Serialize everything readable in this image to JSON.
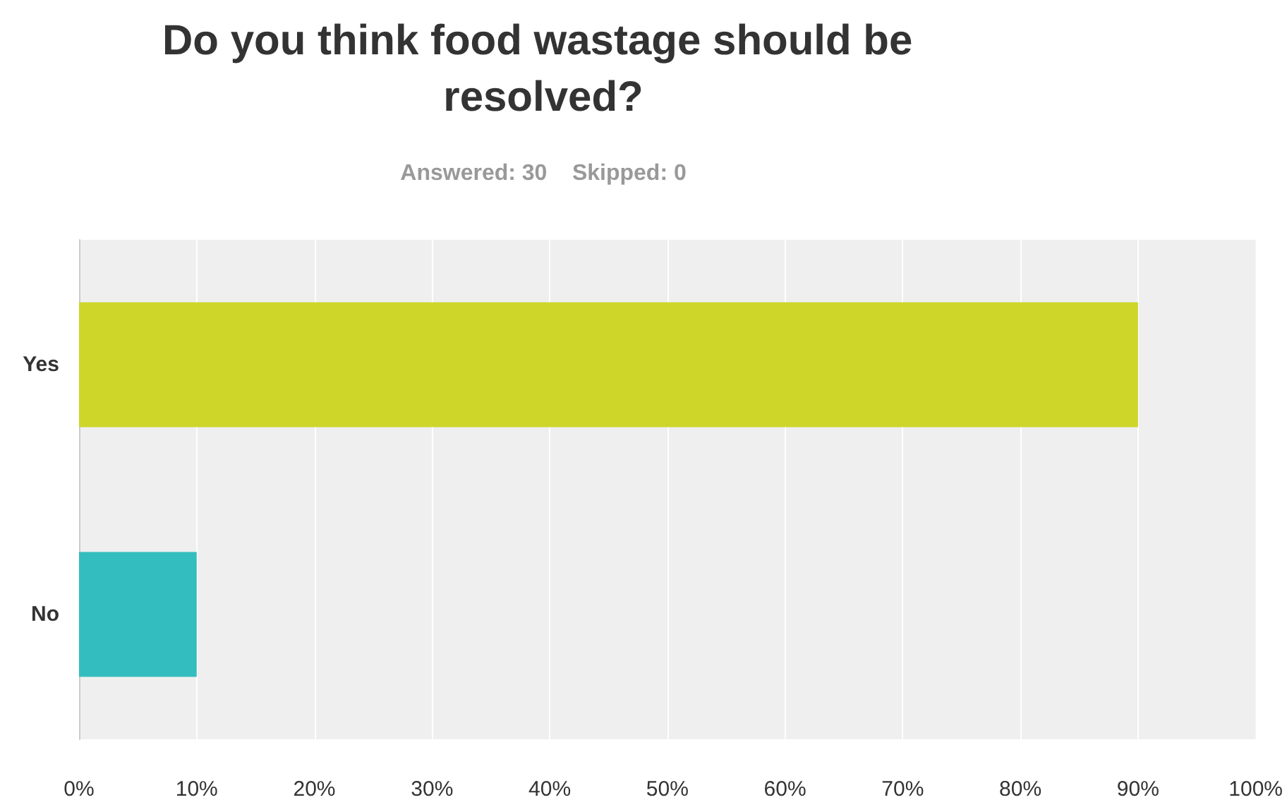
{
  "chart_data": {
    "type": "bar",
    "orientation": "horizontal",
    "title": "Do you think food wastage should be resolved?",
    "subtitle": "Answered: 30    Skipped: 0",
    "categories": [
      "Yes",
      "No"
    ],
    "values": [
      90,
      10
    ],
    "colors": [
      "#cdd629",
      "#33bdbe"
    ],
    "xlim": [
      0,
      100
    ],
    "xticks": [
      {
        "value": 0,
        "label": "0%"
      },
      {
        "value": 10,
        "label": "10%"
      },
      {
        "value": 20,
        "label": "20%"
      },
      {
        "value": 30,
        "label": "30%"
      },
      {
        "value": 40,
        "label": "40%"
      },
      {
        "value": 50,
        "label": "50%"
      },
      {
        "value": 60,
        "label": "60%"
      },
      {
        "value": 70,
        "label": "70%"
      },
      {
        "value": 80,
        "label": "80%"
      },
      {
        "value": 90,
        "label": "90%"
      },
      {
        "value": 100,
        "label": "100%"
      }
    ],
    "grid": "x"
  }
}
